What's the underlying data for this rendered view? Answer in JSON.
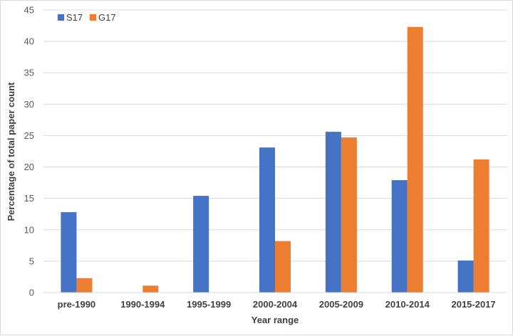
{
  "chart_data": {
    "type": "bar",
    "title": "",
    "xlabel": "Year range",
    "ylabel": "Percentage of total paper count",
    "categories": [
      "pre-1990",
      "1990-1994",
      "1995-1999",
      "2000-2004",
      "2005-2009",
      "2010-2014",
      "2015-2017"
    ],
    "series": [
      {
        "name": "S17",
        "color": "#4472C4",
        "values": [
          12.8,
          0,
          15.4,
          23.1,
          25.6,
          17.9,
          5.1
        ]
      },
      {
        "name": "G17",
        "color": "#ED7D31",
        "values": [
          2.3,
          1.1,
          0,
          8.2,
          24.7,
          42.3,
          21.2
        ]
      }
    ],
    "ylim": [
      0,
      45
    ],
    "yticks": [
      0,
      5,
      10,
      15,
      20,
      25,
      30,
      35,
      40,
      45
    ],
    "grid": true,
    "legend_position": "top-left"
  }
}
